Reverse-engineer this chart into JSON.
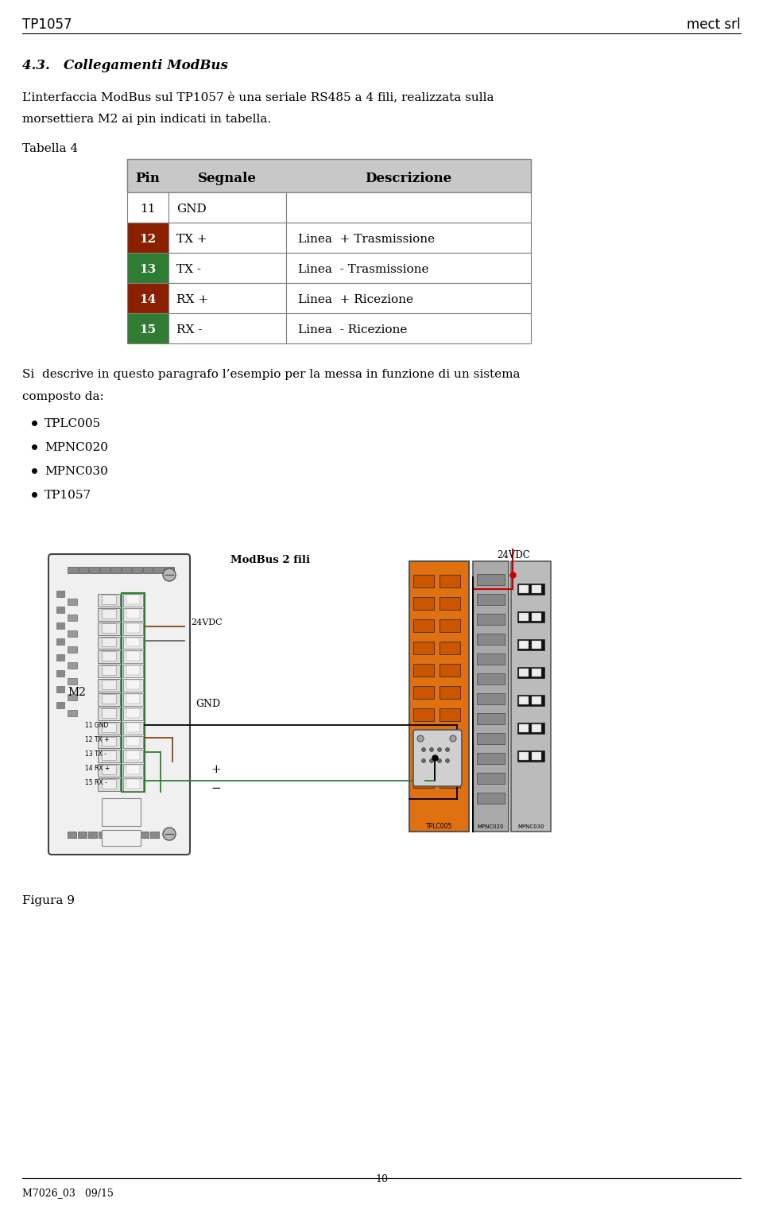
{
  "title_left": "TP1057",
  "title_right": "mect srl",
  "section_title": "4.3.   Collegamenti ModBus",
  "paragraph1_parts": [
    "L’interfaccia ModBus sul TP1057 è una seriale RS485 a 4 fili, realizzata sulla"
  ],
  "paragraph2": "morsettiera M2 ai pin indicati in tabella.",
  "tabella_label": "Tabella 4",
  "table_headers": [
    "Pin",
    "Segnale",
    "Descrizione"
  ],
  "table_rows": [
    {
      "pin": "11",
      "segnale": "GND",
      "descrizione": "",
      "pin_color": null
    },
    {
      "pin": "12",
      "segnale": "TX +",
      "descrizione": "Linea  + Trasmissione",
      "pin_color": "#8B2000"
    },
    {
      "pin": "13",
      "segnale": "TX -",
      "descrizione": "Linea  - Trasmissione",
      "pin_color": "#2E7D32"
    },
    {
      "pin": "14",
      "segnale": "RX +",
      "descrizione": "Linea  + Ricezione",
      "pin_color": "#8B2000"
    },
    {
      "pin": "15",
      "segnale": "RX -",
      "descrizione": "Linea  - Ricezione",
      "pin_color": "#2E7D32"
    }
  ],
  "header_bg": "#C8C8C8",
  "row_bg": "#FFFFFF",
  "table_text_color": "#000000",
  "border_color": "#808080",
  "paragraph_si": "Si  descrive in questo paragrafo l’esempio per la messa in funzione di un sistema",
  "paragraph_composto": "composto da:",
  "bullet_items": [
    "TPLC005",
    "MPNC020",
    "MPNC030",
    "TP1057"
  ],
  "figura_label": "Figura 9",
  "page_number": "10",
  "footer_left": "M7026_03   09/15",
  "bg_color": "#FFFFFF",
  "text_color": "#000000",
  "font_size_title": 12,
  "font_size_section": 12,
  "font_size_body": 11,
  "font_size_table": 11
}
